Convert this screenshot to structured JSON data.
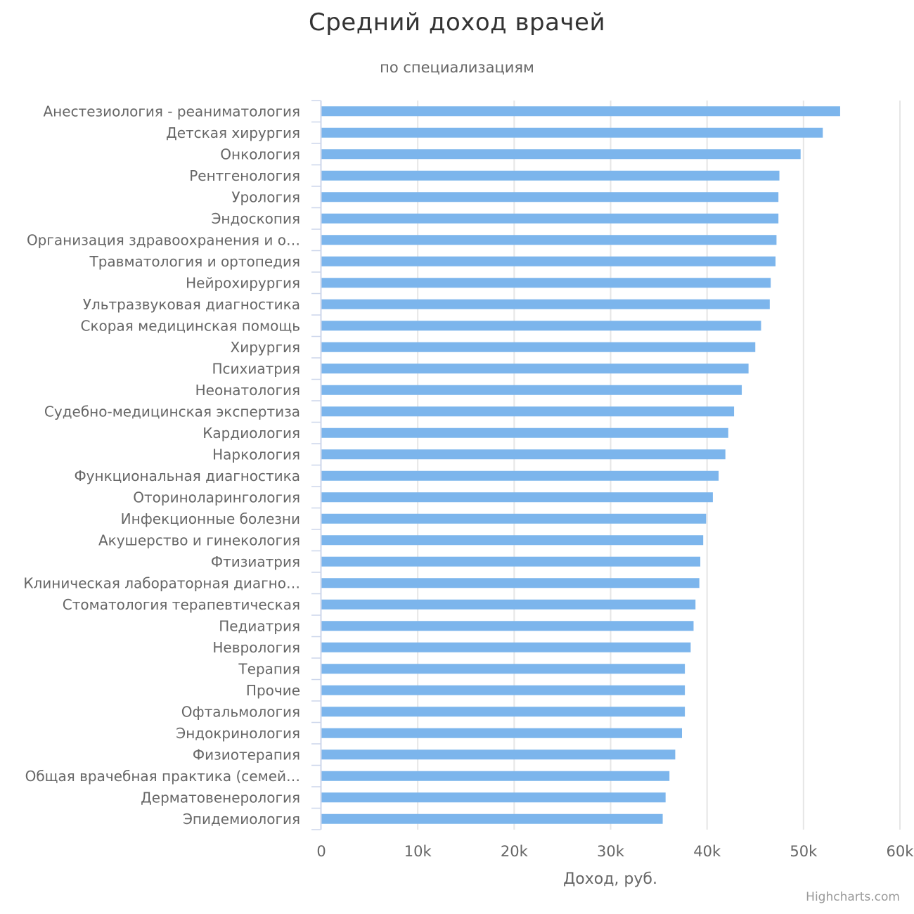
{
  "chart_data": {
    "type": "bar",
    "orientation": "horizontal",
    "title": "Средний доход врачей",
    "subtitle": "по специализациям",
    "xlabel": "Доход, руб.",
    "ylabel": "",
    "xlim": [
      0,
      60000
    ],
    "ticks": [
      {
        "value": 0,
        "label": "0"
      },
      {
        "value": 10000,
        "label": "10k"
      },
      {
        "value": 20000,
        "label": "20k"
      },
      {
        "value": 30000,
        "label": "30k"
      },
      {
        "value": 40000,
        "label": "40k"
      },
      {
        "value": 50000,
        "label": "50k"
      },
      {
        "value": 60000,
        "label": "60k"
      }
    ],
    "grid": true,
    "legend": false,
    "bar_color": "#7cb5ec",
    "categories": [
      "Анестезиология - реаниматология",
      "Детская хирургия",
      "Онкология",
      "Рентгенология",
      "Урология",
      "Эндоскопия",
      "Организация здравоохранения и о…",
      "Травматология и ортопедия",
      "Нейрохирургия",
      "Ультразвуковая диагностика",
      "Скорая медицинская помощь",
      "Хирургия",
      "Психиатрия",
      "Неонатология",
      "Судебно-медицинская экспертиза",
      "Кардиология",
      "Наркология",
      "Функциональная диагностика",
      "Оториноларингология",
      "Инфекционные болезни",
      "Акушерство и гинекология",
      "Фтизиатрия",
      "Клиническая лабораторная диагно…",
      "Стоматология терапевтическая",
      "Педиатрия",
      "Неврология",
      "Терапия",
      "Прочие",
      "Офтальмология",
      "Эндокринология",
      "Физиотерапия",
      "Общая врачебная практика (семей…",
      "Дерматовенерология",
      "Эпидемиология"
    ],
    "values": [
      53800,
      52000,
      49700,
      47500,
      47400,
      47400,
      47200,
      47100,
      46600,
      46500,
      45600,
      45000,
      44300,
      43600,
      42800,
      42200,
      41900,
      41200,
      40600,
      39900,
      39600,
      39300,
      39200,
      38800,
      38600,
      38300,
      37700,
      37700,
      37700,
      37400,
      36700,
      36100,
      35700,
      35400
    ]
  },
  "credits": "Highcharts.com"
}
